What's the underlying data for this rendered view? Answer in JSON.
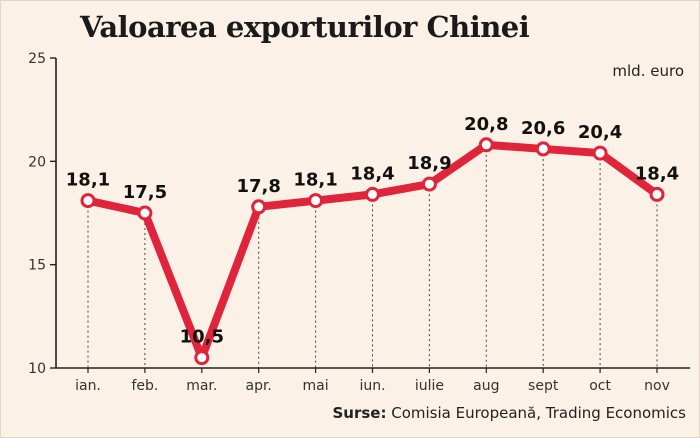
{
  "chart_data": {
    "type": "line",
    "title": "Valoarea exporturilor Chinei",
    "unit": "mld. euro",
    "categories": [
      "ian.",
      "feb.",
      "mar.",
      "apr.",
      "mai",
      "iun.",
      "iulie",
      "aug",
      "sept",
      "oct",
      "nov"
    ],
    "values": [
      18.1,
      17.5,
      10.5,
      17.8,
      18.1,
      18.4,
      18.9,
      20.8,
      20.6,
      20.4,
      18.4
    ],
    "data_labels": [
      "18,1",
      "17,5",
      "10,5",
      "17,8",
      "18,1",
      "18,4",
      "18,9",
      "20,8",
      "20,6",
      "20,4",
      "18,4"
    ],
    "ylim": [
      10,
      25
    ],
    "yticks": [
      "10",
      "15",
      "20",
      "25"
    ],
    "grid": false,
    "line_color": "#e0243c",
    "source_label": "Surse:",
    "source_text": " Comisia Europeană, Trading Economics"
  }
}
